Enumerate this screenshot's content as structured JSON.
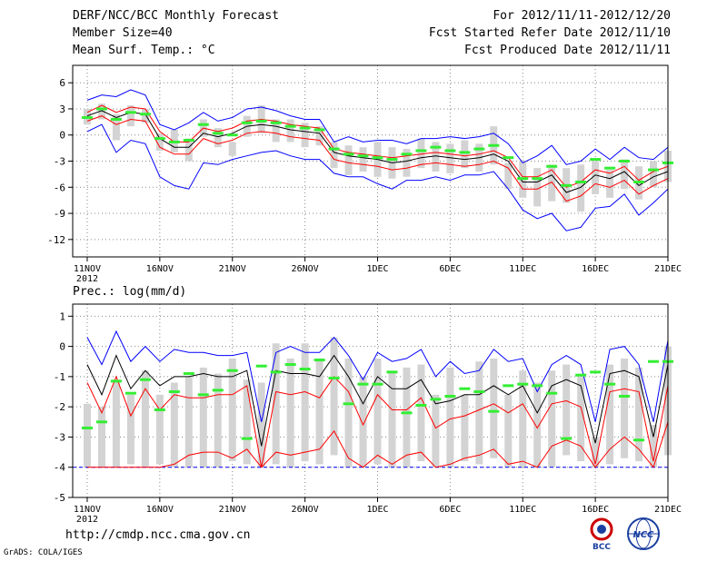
{
  "header": {
    "line1_left": "DERF/NCC/BCC Monthly Forecast",
    "line2_left": "Member Size=40",
    "line3_left": "Mean Surf. Temp.: °C",
    "line1_right": "For 2012/11/11-2012/12/20",
    "line2_right": "Fcst Started Refer Date 2012/11/10",
    "line3_right": "Fcst Produced Date 2012/11/11"
  },
  "footer": {
    "url": "http://cmdp.ncc.cma.gov.cn",
    "credit": "GrADS: COLA/IGES",
    "logo_left_text": "BCC",
    "logo_right_text": "NCC"
  },
  "colors": {
    "box": "#d3d3d3",
    "max_line": "#0000ff",
    "mean_line": "#000000",
    "band_line": "#ff0000",
    "marker": "#33ee33",
    "baseline": "#0000ff"
  },
  "chart_data": [
    {
      "type": "line",
      "title": "Mean Surf. Temp.: °C",
      "ylabel": "°C",
      "ylim": [
        -14,
        8
      ],
      "yticks": [
        6,
        3,
        0,
        -3,
        -6,
        -9,
        -12
      ],
      "xticks": [
        {
          "day": 1,
          "label": "11NOV",
          "sub": "2012"
        },
        {
          "day": 6,
          "label": "16NOV"
        },
        {
          "day": 11,
          "label": "21NOV"
        },
        {
          "day": 16,
          "label": "26NOV"
        },
        {
          "day": 21,
          "label": "1DEC"
        },
        {
          "day": 26,
          "label": "6DEC"
        },
        {
          "day": 31,
          "label": "11DEC"
        },
        {
          "day": 36,
          "label": "16DEC"
        },
        {
          "day": 41,
          "label": "21DEC"
        }
      ],
      "xlim": [
        0,
        41
      ],
      "series": [
        {
          "name": "ensemble max",
          "values": [
            4,
            4.6,
            4.4,
            5.2,
            4.6,
            1.2,
            0.6,
            1.4,
            2.6,
            1.6,
            2,
            3,
            3.2,
            2.8,
            2.2,
            1.8,
            1.8,
            -0.8,
            -0.2,
            -0.8,
            -0.6,
            -0.6,
            -1,
            -0.4,
            -0.4,
            -0.2,
            -0.4,
            -0.2,
            0.2,
            -1,
            -3.2,
            -2.4,
            -1.2,
            -3.4,
            -3,
            -1.6,
            -2.8,
            -1.4,
            -2.6,
            -2.8,
            -1.4
          ]
        },
        {
          "name": "ensemble min",
          "values": [
            0.4,
            1.2,
            -2,
            -0.6,
            -1,
            -4.8,
            -5.8,
            -6.2,
            -3.2,
            -3.4,
            -2.8,
            -2.4,
            -2,
            -1.8,
            -2.4,
            -2.8,
            -2.8,
            -4.4,
            -4.8,
            -4.8,
            -5.6,
            -6.2,
            -5.2,
            -5.2,
            -4.8,
            -5.2,
            -4.6,
            -4.6,
            -4.2,
            -6.2,
            -8.6,
            -9.6,
            -9,
            -11,
            -10.6,
            -8.4,
            -8.2,
            -6.8,
            -9.2,
            -7.8,
            -6.2
          ]
        },
        {
          "name": "ensemble mean",
          "values": [
            2.2,
            2.8,
            2,
            2.6,
            2.4,
            -0.4,
            -1.4,
            -1.4,
            0.2,
            -0.2,
            0.2,
            1,
            1.2,
            1,
            0.6,
            0.4,
            0.2,
            -2,
            -2.4,
            -2.6,
            -2.8,
            -3.2,
            -3,
            -2.6,
            -2.4,
            -2.6,
            -2.8,
            -2.6,
            -2.2,
            -3,
            -5.4,
            -5.4,
            -4.6,
            -6.6,
            -6,
            -4.6,
            -5,
            -4.2,
            -5.8,
            -4.8,
            -4.2
          ]
        },
        {
          "name": "upper band",
          "values": [
            2.6,
            3.4,
            2.6,
            3.2,
            3,
            0.4,
            -0.8,
            -0.8,
            0.8,
            0.4,
            0.8,
            1.6,
            1.8,
            1.6,
            1.2,
            1,
            0.8,
            -1.6,
            -2,
            -2.2,
            -2.4,
            -2.6,
            -2.4,
            -2.2,
            -2,
            -2.2,
            -2.4,
            -2.2,
            -1.8,
            -2.6,
            -4.8,
            -4.8,
            -4,
            -6,
            -5.4,
            -4,
            -4.4,
            -3.6,
            -5.2,
            -4.2,
            -3.6
          ]
        },
        {
          "name": "lower band",
          "values": [
            1.6,
            2.2,
            1.2,
            1.8,
            1.6,
            -1.4,
            -2.2,
            -2.2,
            -0.4,
            -1,
            -0.6,
            0.2,
            0.4,
            0.2,
            -0.2,
            -0.4,
            -0.6,
            -2.8,
            -3.2,
            -3.4,
            -3.6,
            -4,
            -3.8,
            -3.4,
            -3.2,
            -3.4,
            -3.6,
            -3.4,
            -3,
            -3.8,
            -6.2,
            -6.2,
            -5.4,
            -7.6,
            -7,
            -5.6,
            -6,
            -5.2,
            -6.8,
            -5.8,
            -5
          ]
        },
        {
          "name": "box top",
          "values": [
            3,
            3.6,
            2.4,
            3.4,
            3,
            0.2,
            0.6,
            -0.4,
            1.8,
            0.8,
            -0.8,
            2.2,
            3.4,
            1.8,
            1.8,
            1.4,
            1,
            -0.8,
            -1.2,
            -1.4,
            -0.8,
            -1.4,
            -1.6,
            -0.4,
            -0.8,
            -1,
            -0.6,
            -1,
            1,
            -3.2,
            -3,
            -3.8,
            -3.4,
            -3.8,
            -3.4,
            -3,
            -4,
            -2.8,
            -3.6,
            -3,
            -1.8
          ]
        },
        {
          "name": "box bottom",
          "values": [
            1.2,
            1.8,
            -0.6,
            1,
            1.4,
            -1.8,
            -2,
            -3,
            -0.2,
            -1.4,
            -2.4,
            -0.2,
            0.2,
            -0.8,
            -0.8,
            -1.4,
            -1.2,
            -3.8,
            -4.6,
            -4.2,
            -4.8,
            -5,
            -4.8,
            -3.8,
            -4.2,
            -4.4,
            -3.8,
            -4.2,
            -3.4,
            -6.2,
            -7.2,
            -8.2,
            -7.6,
            -7.8,
            -8.8,
            -6.8,
            -7.2,
            -6.2,
            -7.4,
            -6,
            -5.4
          ]
        },
        {
          "name": "marker",
          "values": [
            2,
            3,
            1.8,
            2.6,
            2.4,
            -0.4,
            -0.8,
            -0.6,
            1.2,
            0.2,
            0,
            1.4,
            1.6,
            1.4,
            1,
            0.8,
            0.6,
            -1.6,
            -2.2,
            -2.4,
            -2.6,
            -2.8,
            -2.2,
            -1.8,
            -1.4,
            -1.8,
            -2,
            -1.6,
            -1.2,
            -2.6,
            -5,
            -5,
            -3.6,
            -5.8,
            -5.4,
            -2.8,
            -3.8,
            -3,
            -5.4,
            -4,
            -3.2
          ]
        }
      ]
    },
    {
      "type": "line",
      "title": "Prec.: log(mm/d)",
      "ylabel": "log(mm/d)",
      "ylim": [
        -5,
        1.4
      ],
      "yticks": [
        1,
        0,
        -1,
        -2,
        -3,
        -4,
        -5
      ],
      "xticks": [
        {
          "day": 1,
          "label": "11NOV",
          "sub": "2012"
        },
        {
          "day": 6,
          "label": "16NOV"
        },
        {
          "day": 11,
          "label": "21NOV"
        },
        {
          "day": 16,
          "label": "26NOV"
        },
        {
          "day": 21,
          "label": "1DEC"
        },
        {
          "day": 26,
          "label": "6DEC"
        },
        {
          "day": 31,
          "label": "11DEC"
        },
        {
          "day": 36,
          "label": "16DEC"
        },
        {
          "day": 41,
          "label": "21DEC"
        }
      ],
      "xlim": [
        0,
        41
      ],
      "baseline": -4,
      "series": [
        {
          "name": "ensemble max",
          "values": [
            0.3,
            -0.6,
            0.5,
            -0.5,
            0,
            -0.5,
            -0.1,
            -0.2,
            -0.2,
            -0.3,
            -0.3,
            -0.2,
            -2.5,
            -0.2,
            0,
            -0.2,
            -0.2,
            0.3,
            -0.3,
            -1.1,
            -0.2,
            -0.5,
            -0.4,
            -0.1,
            -1,
            -0.5,
            -0.9,
            -0.8,
            -0.1,
            -0.5,
            -0.4,
            -1.5,
            -0.6,
            -0.3,
            -0.6,
            -2.5,
            -0.1,
            0,
            -0.6,
            -2.5,
            0.2
          ]
        },
        {
          "name": "ensemble mean",
          "values": [
            -0.6,
            -1.6,
            -0.3,
            -1.4,
            -0.8,
            -1.3,
            -1,
            -1,
            -0.9,
            -1,
            -1,
            -0.8,
            -3.3,
            -0.8,
            -0.9,
            -0.9,
            -1,
            -0.3,
            -1,
            -1.9,
            -1,
            -1.4,
            -1.4,
            -1.1,
            -1.9,
            -1.8,
            -1.6,
            -1.6,
            -1.3,
            -1.6,
            -1.3,
            -2.2,
            -1.3,
            -1.1,
            -1.3,
            -3.2,
            -0.9,
            -0.8,
            -1,
            -3,
            -0.6
          ]
        },
        {
          "name": "upper band",
          "values": [
            -1.2,
            -2.2,
            -1,
            -2.3,
            -1.4,
            -2.1,
            -1.6,
            -1.7,
            -1.7,
            -1.6,
            -1.6,
            -1.3,
            -4,
            -1.5,
            -1.6,
            -1.5,
            -1.7,
            -1,
            -1.5,
            -2.6,
            -1.6,
            -2.1,
            -2.1,
            -1.7,
            -2.7,
            -2.4,
            -2.3,
            -2.1,
            -1.9,
            -2.2,
            -1.9,
            -2.7,
            -1.9,
            -1.8,
            -2,
            -3.9,
            -1.5,
            -1.4,
            -1.5,
            -3.8,
            -1.3
          ]
        },
        {
          "name": "lower band",
          "values": [
            -4,
            -4,
            -4,
            -4,
            -4,
            -4,
            -3.9,
            -3.6,
            -3.5,
            -3.5,
            -3.7,
            -3.4,
            -4,
            -3.5,
            -3.6,
            -3.5,
            -3.4,
            -2.8,
            -3.7,
            -4,
            -3.6,
            -3.9,
            -3.6,
            -3.5,
            -4,
            -3.9,
            -3.7,
            -3.6,
            -3.4,
            -3.9,
            -3.8,
            -4,
            -3.3,
            -3.1,
            -3.3,
            -4,
            -3.4,
            -3,
            -3.4,
            -4,
            -2.5
          ]
        },
        {
          "name": "box top",
          "values": [
            -1.9,
            -2,
            -1.1,
            -1.6,
            -0.8,
            -1.6,
            -1.2,
            -1,
            -0.7,
            -0.9,
            -0.4,
            -1.1,
            -1.2,
            0.1,
            -0.4,
            0.1,
            -0.4,
            0.3,
            -0.4,
            -1,
            -0.4,
            -0.8,
            -0.7,
            -0.6,
            -1.6,
            -0.7,
            -1.6,
            -0.5,
            -0.4,
            -1.6,
            -0.8,
            -1.2,
            -0.8,
            -0.6,
            -1,
            -3,
            -0.6,
            -0.4,
            -0.7,
            -2.6,
            0
          ]
        },
        {
          "name": "box bottom",
          "values": [
            -4,
            -4,
            -4,
            -3.9,
            -4,
            -3.9,
            -4,
            -4,
            -4,
            -4,
            -3.8,
            -3.9,
            -4,
            -3.9,
            -4,
            -3.8,
            -3.9,
            -3.6,
            -4,
            -4,
            -3.9,
            -4,
            -4,
            -3.8,
            -4,
            -4,
            -3.8,
            -3.9,
            -3.7,
            -4,
            -4,
            -4,
            -4,
            -3.6,
            -3.8,
            -4,
            -3.9,
            -3.7,
            -3.8,
            -4,
            -3.6
          ]
        },
        {
          "name": "marker",
          "values": [
            -2.7,
            -2.5,
            -1.15,
            -1.55,
            -1.1,
            -2.1,
            -1.5,
            -0.9,
            -1.6,
            -1.45,
            -0.8,
            -3.05,
            -0.65,
            -0.85,
            -0.6,
            -0.75,
            -0.45,
            -1.05,
            -1.9,
            -1.25,
            -1.25,
            -0.85,
            -2.2,
            -1.95,
            -1.75,
            -1.65,
            -1.4,
            -1.5,
            -2.15,
            -1.3,
            -1.25,
            -1.3,
            -1.55,
            -3.05,
            -0.95,
            -0.85,
            -1.25,
            -1.65,
            -3.1,
            -0.5,
            -0.5
          ]
        }
      ]
    }
  ]
}
